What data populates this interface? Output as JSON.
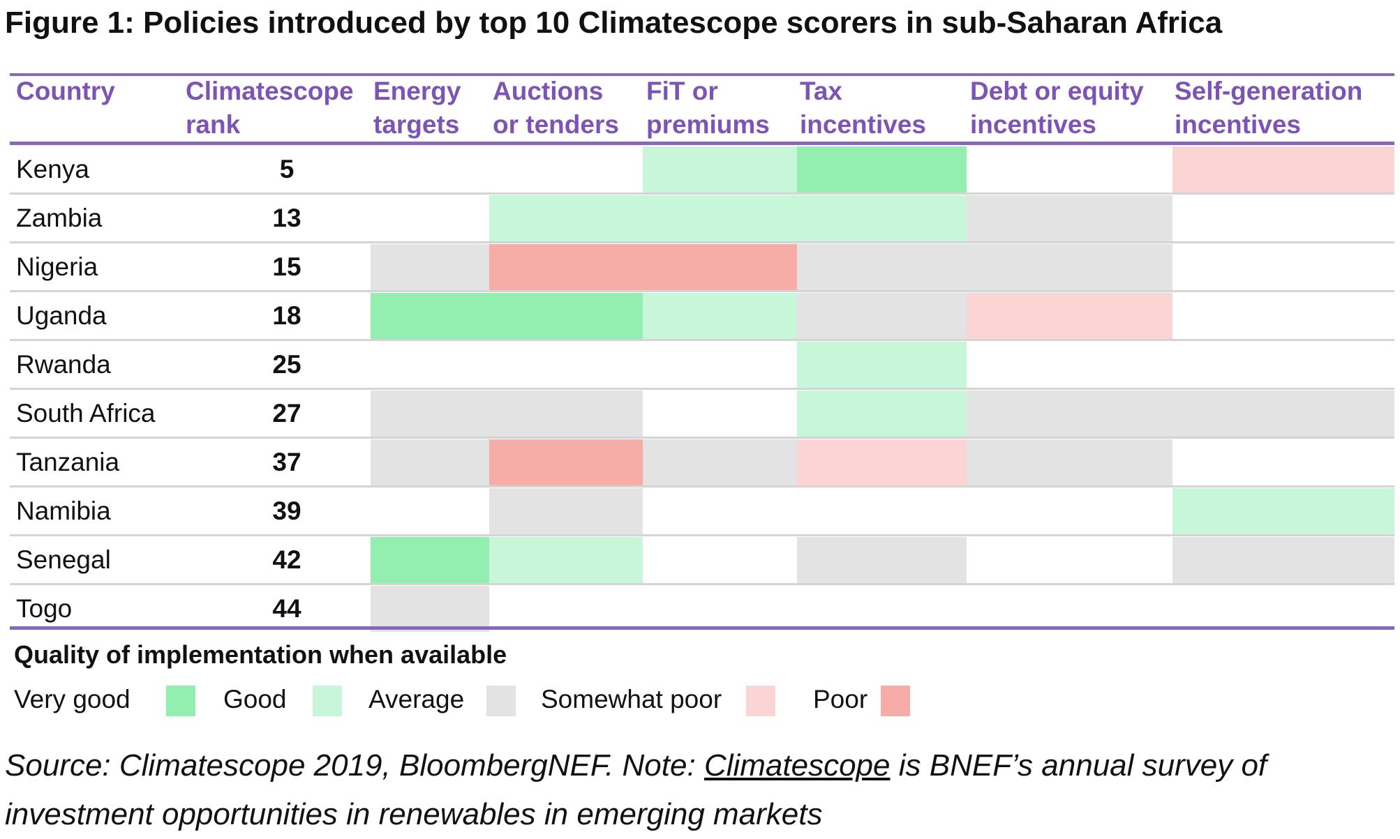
{
  "title": "Figure 1:  Policies introduced by top 10 Climatescope scorers in sub-Saharan Africa",
  "chart_data": {
    "type": "table",
    "columns": [
      "Country",
      "Climatescope rank",
      "Energy targets",
      "Auctions or tenders",
      "FiT or premiums",
      "Tax incentives",
      "Debt or equity incentives",
      "Self-generation incentives"
    ],
    "column_header_lines": [
      [
        "Country",
        ""
      ],
      [
        "Climatescope",
        "rank"
      ],
      [
        "Energy",
        "targets"
      ],
      [
        "Auctions",
        "or tenders"
      ],
      [
        "FiT or",
        "premiums"
      ],
      [
        "Tax",
        "incentives"
      ],
      [
        "Debt or equity",
        "incentives"
      ],
      [
        "Self-generation",
        "incentives"
      ]
    ],
    "rows": [
      {
        "country": "Kenya",
        "rank": "5",
        "cells": [
          "none",
          "none",
          "good",
          "very_good",
          "none",
          "somewhat_poor"
        ]
      },
      {
        "country": "Zambia",
        "rank": "13",
        "cells": [
          "none",
          "good",
          "good",
          "good",
          "average",
          "none"
        ]
      },
      {
        "country": "Nigeria",
        "rank": "15",
        "cells": [
          "average",
          "poor",
          "poor",
          "average",
          "average",
          "none"
        ]
      },
      {
        "country": "Uganda",
        "rank": "18",
        "cells": [
          "very_good",
          "very_good",
          "good",
          "average",
          "somewhat_poor",
          "none"
        ]
      },
      {
        "country": "Rwanda",
        "rank": "25",
        "cells": [
          "none",
          "none",
          "none",
          "good",
          "none",
          "none"
        ]
      },
      {
        "country": "South Africa",
        "rank": "27",
        "cells": [
          "average",
          "average",
          "none",
          "good",
          "average",
          "average"
        ]
      },
      {
        "country": "Tanzania",
        "rank": "37",
        "cells": [
          "average",
          "poor",
          "average",
          "somewhat_poor",
          "average",
          "none"
        ]
      },
      {
        "country": "Namibia",
        "rank": "39",
        "cells": [
          "none",
          "average",
          "none",
          "none",
          "none",
          "good"
        ]
      },
      {
        "country": "Senegal",
        "rank": "42",
        "cells": [
          "very_good",
          "good",
          "none",
          "average",
          "none",
          "average"
        ]
      },
      {
        "country": "Togo",
        "rank": "44",
        "cells": [
          "average",
          "none",
          "none",
          "none",
          "none",
          "none"
        ]
      }
    ],
    "legend_title": "Quality of implementation when available",
    "legend": [
      {
        "key": "very_good",
        "label": "Very good",
        "color": "#93eeb0"
      },
      {
        "key": "good",
        "label": "Good",
        "color": "#c7f6d8"
      },
      {
        "key": "average",
        "label": "Average",
        "color": "#e3e3e3"
      },
      {
        "key": "somewhat_poor",
        "label": "Somewhat poor",
        "color": "#fbd5d3"
      },
      {
        "key": "poor",
        "label": "Poor",
        "color": "#f6aca7"
      }
    ]
  },
  "source": {
    "prefix": "Source: Climatescope 2019, BloombergNEF. Note: ",
    "link": "Climatescope",
    "suffix": " is BNEF’s annual survey of investment opportunities in renewables in emerging markets"
  },
  "colors": {
    "header_text": "#7d53b5",
    "rule": "#8a66be",
    "row_separator": "#d4d4d4"
  }
}
